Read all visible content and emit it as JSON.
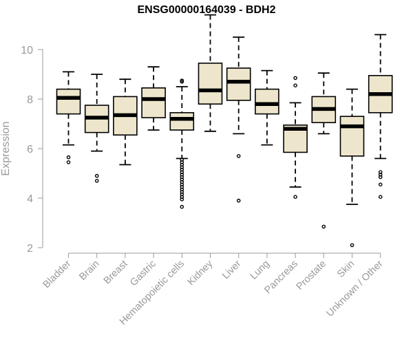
{
  "chart_data": {
    "type": "box",
    "title": "ENSG00000164039 - BDH2",
    "ylabel": "Expression",
    "xlabel": "",
    "ylim": [
      2,
      11.5
    ],
    "yticks": [
      2,
      4,
      6,
      8,
      10
    ],
    "grid": false,
    "colors": {
      "box_fill": "#EDE6CC",
      "stroke": "#000000",
      "axis_text": "#999999",
      "axis_line": "#999999"
    },
    "categories": [
      "Bladder",
      "Brain",
      "Breast",
      "Gastric",
      "Hematopoietic cells",
      "Kidney",
      "Liver",
      "Lung",
      "Pancreas",
      "Prostate",
      "Skin",
      "Unknown / Other"
    ],
    "boxes": [
      {
        "whisker_low": 6.15,
        "q1": 7.4,
        "median": 8.05,
        "q3": 8.4,
        "whisker_high": 9.1,
        "outliers": [
          5.65,
          5.45
        ]
      },
      {
        "whisker_low": 5.9,
        "q1": 6.65,
        "median": 7.25,
        "q3": 7.75,
        "whisker_high": 9.0,
        "outliers": [
          4.9,
          4.7
        ]
      },
      {
        "whisker_low": 5.35,
        "q1": 6.55,
        "median": 7.35,
        "q3": 8.1,
        "whisker_high": 8.8,
        "outliers": []
      },
      {
        "whisker_low": 6.75,
        "q1": 7.25,
        "median": 8.0,
        "q3": 8.45,
        "whisker_high": 9.3,
        "outliers": []
      },
      {
        "whisker_low": 5.6,
        "q1": 6.75,
        "median": 7.2,
        "q3": 7.45,
        "whisker_high": 8.5,
        "outliers": [
          8.75,
          8.7,
          5.55,
          5.45,
          5.35,
          5.25,
          5.15,
          5.05,
          4.95,
          4.85,
          4.75,
          4.65,
          4.55,
          4.45,
          4.35,
          4.25,
          4.15,
          4.05,
          3.95,
          3.65
        ]
      },
      {
        "whisker_low": 6.7,
        "q1": 7.8,
        "median": 8.35,
        "q3": 9.45,
        "whisker_high": 11.4,
        "outliers": []
      },
      {
        "whisker_low": 6.6,
        "q1": 7.95,
        "median": 8.7,
        "q3": 9.25,
        "whisker_high": 10.5,
        "outliers": [
          5.7,
          3.9
        ]
      },
      {
        "whisker_low": 6.15,
        "q1": 7.4,
        "median": 7.8,
        "q3": 8.4,
        "whisker_high": 9.15,
        "outliers": []
      },
      {
        "whisker_low": 4.45,
        "q1": 5.85,
        "median": 6.8,
        "q3": 6.95,
        "whisker_high": 7.85,
        "outliers": [
          8.85,
          8.55,
          4.05
        ]
      },
      {
        "whisker_low": 6.6,
        "q1": 7.05,
        "median": 7.6,
        "q3": 8.1,
        "whisker_high": 9.05,
        "outliers": [
          2.85
        ]
      },
      {
        "whisker_low": 3.75,
        "q1": 5.7,
        "median": 6.9,
        "q3": 7.3,
        "whisker_high": 8.4,
        "outliers": [
          2.1
        ]
      },
      {
        "whisker_low": 5.6,
        "q1": 7.45,
        "median": 8.2,
        "q3": 8.95,
        "whisker_high": 10.6,
        "outliers": [
          5.05,
          4.95,
          4.85,
          4.55,
          4.05
        ]
      }
    ]
  }
}
